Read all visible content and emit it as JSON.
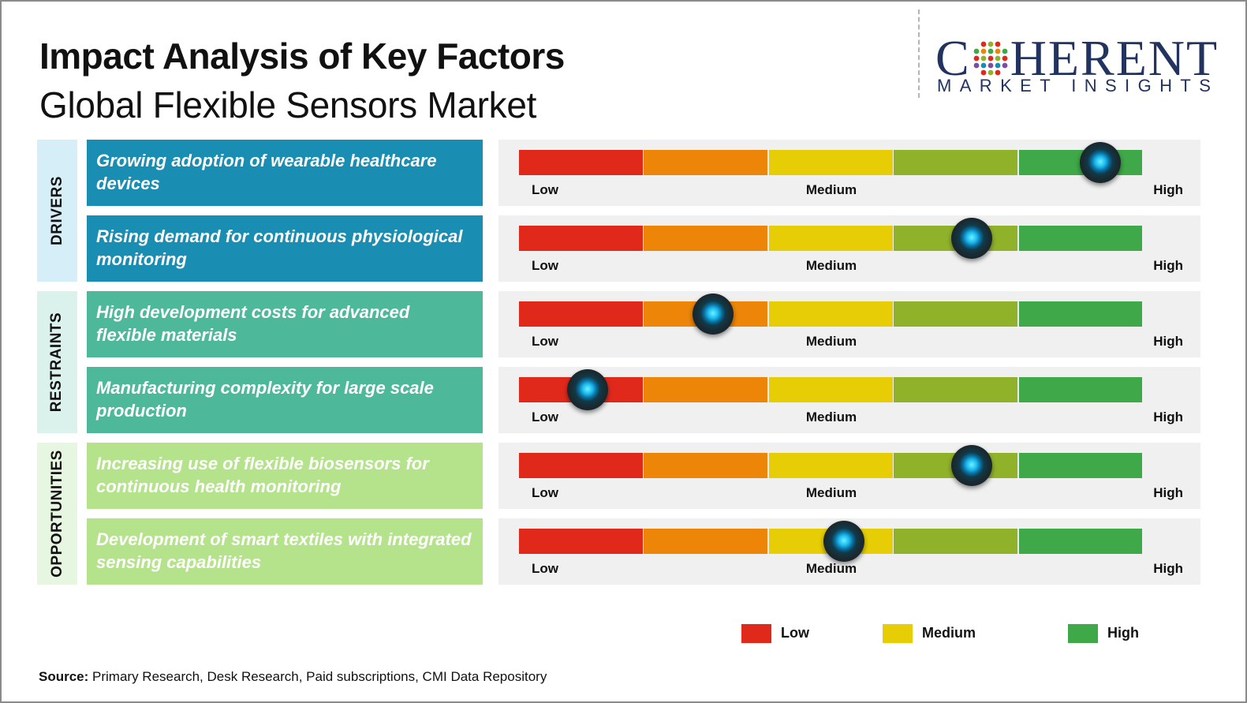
{
  "header": {
    "title": "Impact Analysis of Key Factors",
    "subtitle": "Global Flexible Sensors Market"
  },
  "logo": {
    "first_letter": "C",
    "rest": "HERENT",
    "tagline": "MARKET INSIGHTS",
    "color": "#22335f"
  },
  "chart_data": {
    "type": "table",
    "scale_colors": [
      "#e0291b",
      "#ec8508",
      "#e6cd05",
      "#90b22a",
      "#3fa848"
    ],
    "categories": [
      {
        "name": "DRIVERS",
        "color": "#d6eef8"
      },
      {
        "name": "RESTRAINTS",
        "color": "#dbf1ec"
      },
      {
        "name": "OPPORTUNITIES",
        "color": "#e7f6e0"
      }
    ],
    "factors": [
      {
        "category": "DRIVERS",
        "label": "Growing adoption of wearable healthcare devices",
        "impact": 0.93,
        "color": "#1a8db3"
      },
      {
        "category": "DRIVERS",
        "label": "Rising demand for continuous physiological monitoring",
        "impact": 0.725,
        "color": "#1a8db3"
      },
      {
        "category": "RESTRAINTS",
        "label": "High development costs for advanced flexible materials",
        "impact": 0.31,
        "color": "#4eb89a"
      },
      {
        "category": "RESTRAINTS",
        "label": "Manufacturing complexity for large scale production",
        "impact": 0.11,
        "color": "#4eb89a"
      },
      {
        "category": "OPPORTUNITIES",
        "label": "Increasing use of flexible biosensors for continuous health monitoring",
        "impact": 0.725,
        "color": "#b5e38c"
      },
      {
        "category": "OPPORTUNITIES",
        "label": "Development of smart textiles with integrated sensing capabilities",
        "impact": 0.52,
        "color": "#b5e38c"
      }
    ],
    "ticks": [
      "Low",
      "Medium",
      "High"
    ],
    "legend": [
      {
        "label": "Low",
        "color": "#e0291b"
      },
      {
        "label": "Medium",
        "color": "#e6cd05"
      },
      {
        "label": "High",
        "color": "#3fa848"
      }
    ]
  },
  "footer": {
    "source_label": "Source:",
    "source_text": " Primary Research, Desk Research, Paid subscriptions, CMI Data Repository"
  }
}
